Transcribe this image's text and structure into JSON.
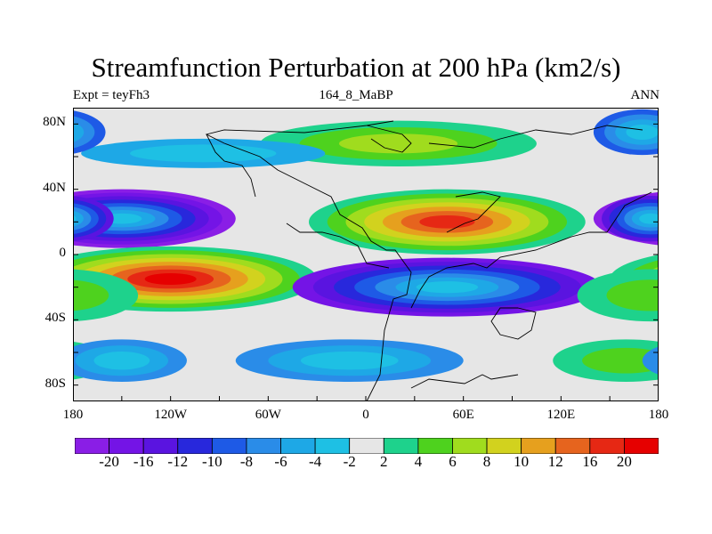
{
  "title": "Streamfunction Perturbation at 200 hPa (km2/s)",
  "subtitle_left": "Expt = teyFh3",
  "subtitle_center": "164_8_MaBP",
  "subtitle_right": "ANN",
  "lat_labels": [
    "80N",
    "40N",
    "0",
    "40S",
    "80S"
  ],
  "lon_labels": [
    "180",
    "120W",
    "60W",
    "0",
    "60E",
    "120E",
    "180"
  ],
  "colorbar": {
    "colors": [
      "#8a1ee6",
      "#7414e6",
      "#5a14e0",
      "#2828dc",
      "#1e5ae6",
      "#2a8ce8",
      "#1ea8e6",
      "#1ec0e4",
      "#e6e6e6",
      "#1ed28c",
      "#4ed21e",
      "#a0dc1e",
      "#d2d21e",
      "#e6a01e",
      "#e6641e",
      "#e62814",
      "#e60000"
    ],
    "labels": [
      "-20",
      "-16",
      "-12",
      "-10",
      "-8",
      "-6",
      "-4",
      "-2",
      "2",
      "4",
      "6",
      "8",
      "10",
      "12",
      "16",
      "20"
    ]
  },
  "map_regions": [
    {
      "name": "north-pacific-low",
      "lon": -150,
      "lat": 22,
      "rx": 70,
      "ry": 18,
      "value": -20
    },
    {
      "name": "south-pacific-high",
      "lon": -120,
      "lat": -15,
      "rx": 90,
      "ry": 20,
      "value": 22
    },
    {
      "name": "eurasia-high",
      "lon": 50,
      "lat": 20,
      "rx": 85,
      "ry": 20,
      "value": 18
    },
    {
      "name": "indian-ocean-low",
      "lon": 50,
      "lat": -20,
      "rx": 95,
      "ry": 18,
      "value": -18
    },
    {
      "name": "arctic-eurasia-high",
      "lon": 20,
      "lat": 68,
      "rx": 85,
      "ry": 14,
      "value": 6
    },
    {
      "name": "southern-ocean-low",
      "lon": -10,
      "lat": -65,
      "rx": 70,
      "ry": 13,
      "value": -6
    },
    {
      "name": "north-atlantic-low",
      "lon": -100,
      "lat": 62,
      "rx": 75,
      "ry": 9,
      "value": -4
    },
    {
      "name": "east-pacific-low",
      "lon": 175,
      "lat": 22,
      "rx": 30,
      "ry": 14,
      "value": -12
    },
    {
      "name": "north-pacific-high-edge",
      "lon": 170,
      "lat": 75,
      "rx": 30,
      "ry": 14,
      "value": -8
    },
    {
      "name": "south-indian-high",
      "lon": 175,
      "lat": -25,
      "rx": 45,
      "ry": 16,
      "value": 5
    },
    {
      "name": "south-pacific-far-high",
      "lon": 160,
      "lat": -65,
      "rx": 45,
      "ry": 13,
      "value": 5
    },
    {
      "name": "east-pacific-south-low",
      "lon": -150,
      "lat": -65,
      "rx": 40,
      "ry": 13,
      "value": -6
    }
  ]
}
